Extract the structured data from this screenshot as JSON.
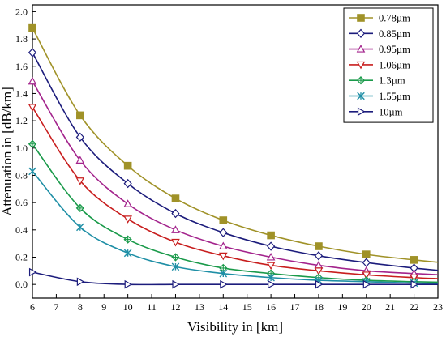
{
  "chart_data": {
    "type": "line",
    "title": "",
    "xlabel": "Visibility in [km]",
    "ylabel": "Attenuation in [dB/km]",
    "xlim": [
      6,
      23
    ],
    "ylim": [
      -0.1,
      2.05
    ],
    "x_ticks": [
      6,
      7,
      8,
      9,
      10,
      11,
      12,
      13,
      14,
      15,
      16,
      17,
      18,
      19,
      20,
      21,
      22,
      23
    ],
    "y_ticks": [
      "0.0",
      "0.2",
      "0.4",
      "0.6",
      "0.8",
      "1.0",
      "1.2",
      "1.4",
      "1.6",
      "1.8",
      "2.0"
    ],
    "legend_position": "top-right",
    "x": [
      6,
      8,
      10,
      12,
      14,
      16,
      18,
      20,
      22
    ],
    "series": [
      {
        "name": "0.78µm",
        "marker": "square-filled",
        "color": "#a09228",
        "values": [
          1.88,
          1.24,
          0.87,
          0.63,
          0.47,
          0.36,
          0.28,
          0.22,
          0.18
        ]
      },
      {
        "name": "0.85µm",
        "marker": "diamond-open",
        "color": "#1c1c7c",
        "values": [
          1.7,
          1.08,
          0.74,
          0.52,
          0.38,
          0.28,
          0.21,
          0.16,
          0.12
        ]
      },
      {
        "name": "0.95µm",
        "marker": "triangle-up-open",
        "color": "#a3238c",
        "values": [
          1.49,
          0.91,
          0.59,
          0.4,
          0.28,
          0.2,
          0.14,
          0.1,
          0.08
        ]
      },
      {
        "name": "1.06µm",
        "marker": "triangle-down-open",
        "color": "#c81e1e",
        "values": [
          1.3,
          0.76,
          0.48,
          0.31,
          0.21,
          0.14,
          0.1,
          0.07,
          0.05
        ]
      },
      {
        "name": "1.3µm",
        "marker": "diamond-cross",
        "color": "#1a9a4a",
        "values": [
          1.03,
          0.56,
          0.33,
          0.2,
          0.12,
          0.08,
          0.05,
          0.03,
          0.02
        ]
      },
      {
        "name": "1.55µm",
        "marker": "asterisk",
        "color": "#1f8fa6",
        "values": [
          0.83,
          0.42,
          0.23,
          0.13,
          0.08,
          0.05,
          0.03,
          0.02,
          0.01
        ]
      },
      {
        "name": "10µm",
        "marker": "triangle-right-open",
        "color": "#1c1c7c",
        "values": [
          0.09,
          0.02,
          0.0,
          0.0,
          0.0,
          0.0,
          0.0,
          0.0,
          0.0
        ]
      }
    ]
  }
}
